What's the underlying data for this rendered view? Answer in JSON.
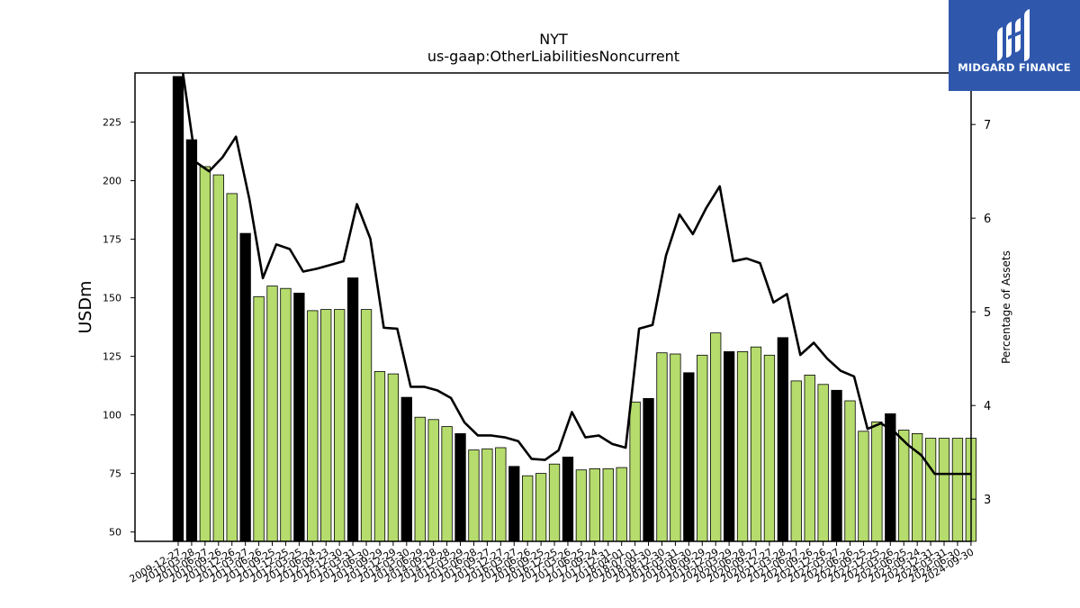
{
  "logo": {
    "text": "MIDGARD FINANCE"
  },
  "chart_data": {
    "type": "bar",
    "title": "NYT",
    "subtitle": "us-gaap:OtherLiabilitiesNoncurrent",
    "ylabel": "USDm",
    "y2label": "Percentage of Assets",
    "ylim": [
      46,
      246
    ],
    "y2lim": [
      2.55,
      7.55
    ],
    "yticks": [
      50,
      75,
      100,
      125,
      150,
      175,
      200,
      225
    ],
    "y2ticks": [
      3,
      4,
      5,
      6,
      7
    ],
    "colors": {
      "annual": "#000000",
      "quarterly": "#b5dc6c",
      "line": "#000000"
    },
    "categories": [
      "2009-12-27",
      "2010-03-28",
      "2010-06-27",
      "2010-09-26",
      "2010-12-26",
      "2011-03-27",
      "2011-06-26",
      "2011-09-25",
      "2011-12-25",
      "2012-03-25",
      "2012-06-24",
      "2012-09-23",
      "2012-12-30",
      "2013-03-31",
      "2013-06-30",
      "2013-09-29",
      "2013-12-29",
      "2014-03-30",
      "2014-06-29",
      "2014-09-28",
      "2014-12-28",
      "2015-03-29",
      "2015-06-28",
      "2015-09-27",
      "2015-12-27",
      "2016-03-27",
      "2016-06-26",
      "2016-09-25",
      "2016-12-25",
      "2017-03-26",
      "2017-06-25",
      "2017-09-24",
      "2017-12-31",
      "2018-04-01",
      "2018-07-01",
      "2018-09-30",
      "2018-12-30",
      "2019-03-31",
      "2019-06-30",
      "2019-09-29",
      "2019-12-29",
      "2020-03-29",
      "2020-06-28",
      "2020-09-27",
      "2020-12-27",
      "2021-03-28",
      "2021-06-27",
      "2021-09-26",
      "2021-12-26",
      "2022-03-27",
      "2022-06-26",
      "2022-09-25",
      "2022-12-25",
      "2023-03-26",
      "2023-06-25",
      "2023-09-24",
      "2023-12-31",
      "2024-03-31",
      "2024-06-30",
      "2024-09-30"
    ],
    "values": [
      244.5,
      217.5,
      206,
      202.5,
      194.5,
      177.5,
      150.5,
      155,
      154,
      152,
      144.5,
      145,
      145,
      158.5,
      145,
      118.5,
      117.5,
      107.5,
      99,
      98,
      95,
      92,
      85,
      85.5,
      86,
      78,
      74,
      75,
      79,
      82,
      76.5,
      77,
      77,
      77.5,
      105.5,
      107,
      126.5,
      126,
      118,
      125.5,
      135,
      127,
      127,
      129,
      125.5,
      133,
      114.5,
      117,
      113,
      110.5,
      106,
      93,
      97,
      100.5,
      93.5,
      92,
      90,
      90,
      90,
      90
    ],
    "annual": [
      true,
      true,
      false,
      false,
      false,
      true,
      false,
      false,
      false,
      true,
      false,
      false,
      false,
      true,
      false,
      false,
      false,
      true,
      false,
      false,
      false,
      true,
      false,
      false,
      false,
      true,
      false,
      false,
      false,
      true,
      false,
      false,
      false,
      false,
      false,
      true,
      false,
      false,
      true,
      false,
      false,
      true,
      false,
      false,
      false,
      true,
      false,
      false,
      false,
      true,
      false,
      false,
      false,
      true,
      false,
      false,
      false,
      false,
      false,
      false
    ],
    "line": [
      7.6,
      6.6,
      6.5,
      6.65,
      6.87,
      6.2,
      5.36,
      5.72,
      5.67,
      5.43,
      5.46,
      5.5,
      5.54,
      6.15,
      5.78,
      4.83,
      4.82,
      4.2,
      4.2,
      4.16,
      4.08,
      3.82,
      3.68,
      3.68,
      3.66,
      3.62,
      3.43,
      3.42,
      3.52,
      3.93,
      3.66,
      3.68,
      3.59,
      3.55,
      4.82,
      4.86,
      5.6,
      6.04,
      5.83,
      6.11,
      6.34,
      5.54,
      5.57,
      5.52,
      5.1,
      5.19,
      4.54,
      4.67,
      4.5,
      4.37,
      4.31,
      3.75,
      3.81,
      3.72,
      3.58,
      3.47,
      3.27,
      3.27,
      3.27,
      3.27
    ]
  }
}
